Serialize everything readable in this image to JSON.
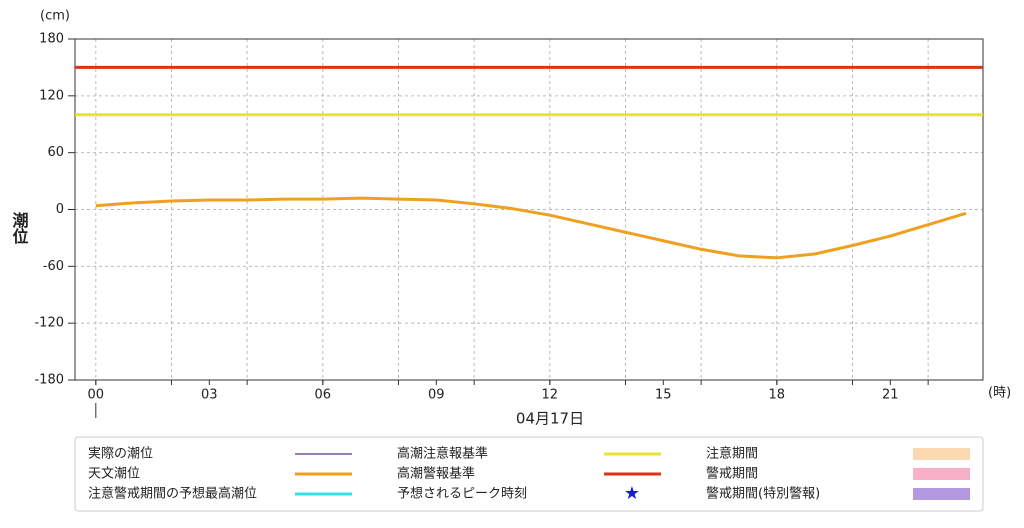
{
  "chart_data": {
    "type": "line",
    "y_label": "潮位",
    "y_unit": "(cm)",
    "x_unit": "(時)",
    "date_label": "04月17日",
    "x": [
      0,
      1,
      2,
      3,
      4,
      5,
      6,
      7,
      8,
      9,
      10,
      11,
      12,
      13,
      14,
      15,
      16,
      17,
      18,
      19,
      20,
      21,
      22,
      23
    ],
    "xlim": [
      -0.55,
      23.45
    ],
    "xticks": [
      {
        "value": 0,
        "label": "00"
      },
      {
        "value": 3,
        "label": "03"
      },
      {
        "value": 6,
        "label": "06"
      },
      {
        "value": 9,
        "label": "09"
      },
      {
        "value": 12,
        "label": "12"
      },
      {
        "value": 15,
        "label": "15"
      },
      {
        "value": 18,
        "label": "18"
      },
      {
        "value": 21,
        "label": "21"
      }
    ],
    "xgrid": [
      0,
      2,
      4,
      6,
      8,
      10,
      12,
      14,
      16,
      18,
      20,
      22
    ],
    "ylim": [
      -180,
      180
    ],
    "yticks": [
      -180,
      -120,
      -60,
      0,
      60,
      120,
      180
    ],
    "grid": true,
    "series": [
      {
        "name": "天文潮位",
        "color": "#f0a020",
        "values": [
          4,
          7,
          9,
          10,
          10,
          11,
          11,
          12,
          11,
          10,
          6,
          1,
          -6,
          -15,
          -24,
          -33,
          -42,
          -49,
          -51,
          -47,
          -38,
          -28,
          -16,
          -4
        ]
      }
    ],
    "thresholds": [
      {
        "name": "高潮注意報基準",
        "value": 100,
        "color": "#e8e42a"
      },
      {
        "name": "高潮警報基準",
        "value": 150,
        "color": "#e0301a"
      }
    ],
    "other_legend": [
      {
        "name": "実際の潮位",
        "color": "#7b4fa6",
        "symbol": "line"
      },
      {
        "name": "注意警戒期間の予想最高潮位",
        "color": "#33e0e8",
        "symbol": "line"
      },
      {
        "name": "予想されるピーク時刻",
        "color": "#1a1adf",
        "symbol": "star"
      },
      {
        "name": "注意期間",
        "color": "#fad9b0",
        "symbol": "box"
      },
      {
        "name": "警戒期間",
        "color": "#f8b0c8",
        "symbol": "box"
      },
      {
        "name": "警戒期間(特別警報)",
        "color": "#b39ae0",
        "symbol": "box"
      }
    ]
  }
}
